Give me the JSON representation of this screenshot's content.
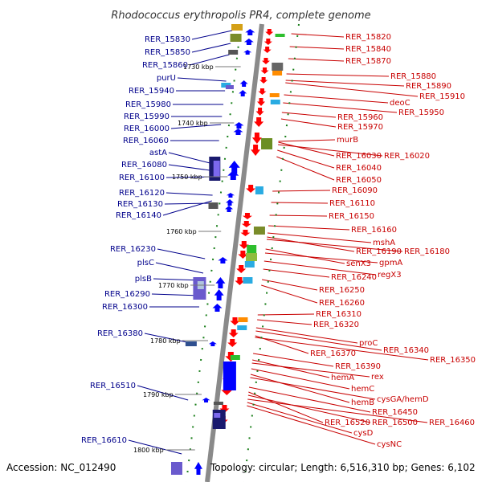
{
  "title": "Rhodococcus erythropolis PR4, complete genome",
  "footer": {
    "accession": "Accession: NC_012490",
    "summary": "Topology: circular; Length: 6,516,310 bp; Genes: 6,102"
  },
  "colors": {
    "left_label": "#00008b",
    "right_label": "#c80000",
    "forward_arrow": "#0000ff",
    "reverse_arrow": "#ff0000",
    "tick": "#1a7f1a",
    "axis": "#888888"
  },
  "kbp_ticks": [
    "1730 kbp",
    "1740 kbp",
    "1750 kbp",
    "1760 kbp",
    "1770 kbp",
    "1780 kbp",
    "1790 kbp",
    "1800 kbp"
  ],
  "left_labels": [
    "RER_15830",
    "RER_15850",
    "RER_15860",
    "purU",
    "RER_15940",
    "RER_15980",
    "RER_15990",
    "RER_16000",
    "RER_16060",
    "astA",
    "RER_16080",
    "RER_16100",
    "RER_16120",
    "RER_16130",
    "RER_16140",
    "RER_16230",
    "plsC",
    "plsB",
    "RER_16290",
    "RER_16300",
    "RER_16380",
    "RER_16510",
    "RER_16610"
  ],
  "right_labels": [
    "RER_15820",
    "RER_15840",
    "RER_15870",
    "RER_15880",
    "RER_15890",
    "RER_15910",
    "deoC",
    "RER_15950",
    "RER_15960",
    "RER_15970",
    "murB",
    "RER_16030",
    "RER_16020",
    "RER_16040",
    "RER_16050",
    "RER_16090",
    "RER_16110",
    "RER_16150",
    "RER_16160",
    "mshA",
    "RER_16190",
    "RER_16180",
    "senX3",
    "gpmA",
    "regX3",
    "RER_16240",
    "RER_16250",
    "RER_16260",
    "RER_16310",
    "RER_16320",
    "proC",
    "RER_16340",
    "RER_16370",
    "RER_16350",
    "RER_16390",
    "hemA",
    "rex",
    "hemC",
    "hemB",
    "cysGA/hemD",
    "RER_16450",
    "RER_16520",
    "RER_16500",
    "RER_16460",
    "cysD",
    "cysNC"
  ]
}
